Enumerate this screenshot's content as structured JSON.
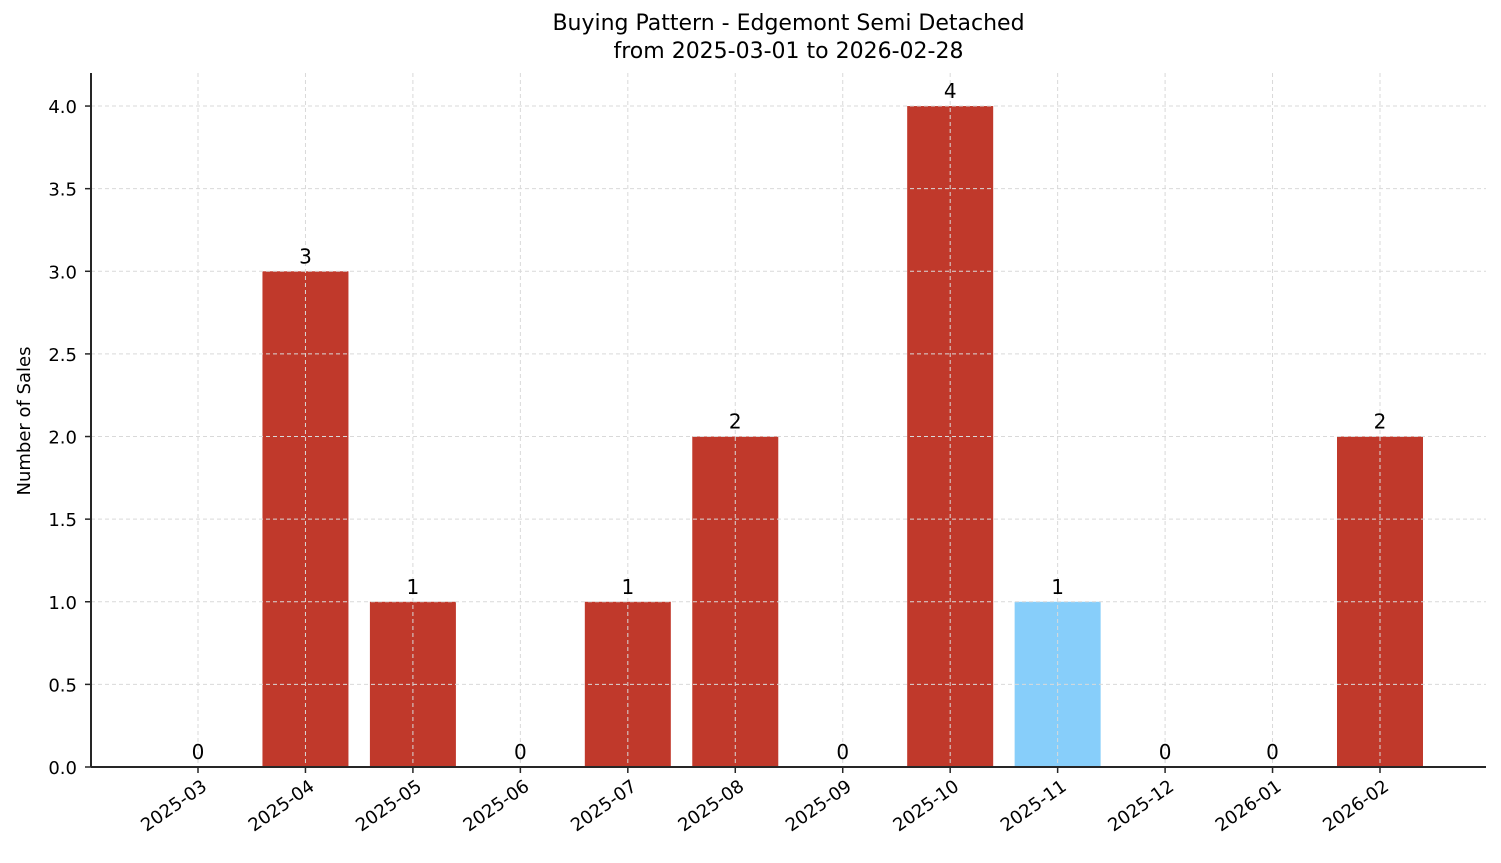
{
  "chart_data": {
    "type": "bar",
    "title": "Buying Pattern - Edgemont Semi Detached",
    "subtitle": "from 2025-03-01 to 2026-02-28",
    "xlabel": "",
    "ylabel": "Number of Sales",
    "categories": [
      "2025-03",
      "2025-04",
      "2025-05",
      "2025-06",
      "2025-07",
      "2025-08",
      "2025-09",
      "2025-10",
      "2025-11",
      "2025-12",
      "2026-01",
      "2026-02"
    ],
    "values": [
      0,
      3,
      1,
      0,
      1,
      2,
      0,
      4,
      1,
      0,
      0,
      2
    ],
    "bar_labels": [
      "0",
      "3",
      "1",
      "0",
      "1",
      "2",
      "0",
      "4",
      "1",
      "0",
      "0",
      "2"
    ],
    "bar_colors": [
      "#c0392b",
      "#c0392b",
      "#c0392b",
      "#c0392b",
      "#c0392b",
      "#c0392b",
      "#c0392b",
      "#c0392b",
      "#87cefa",
      "#c0392b",
      "#c0392b",
      "#c0392b"
    ],
    "highlight_category": "2025-11",
    "yticks": [
      0.0,
      0.5,
      1.0,
      1.5,
      2.0,
      2.5,
      3.0,
      3.5,
      4.0
    ],
    "ytick_labels": [
      "0.0",
      "0.5",
      "1.0",
      "1.5",
      "2.0",
      "2.5",
      "3.0",
      "3.5",
      "4.0"
    ],
    "ylim": [
      0,
      4.2
    ],
    "grid": true,
    "grid_style": "dashed",
    "legend": null,
    "colors": {
      "primary": "#c0392b",
      "highlight": "#87cefa",
      "grid": "#d9d9d9",
      "axis": "#262626"
    }
  }
}
